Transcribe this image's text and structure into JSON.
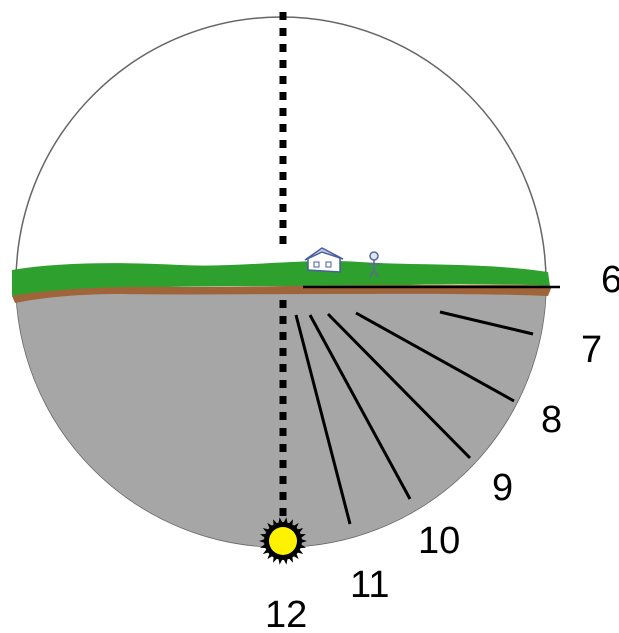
{
  "diagram": {
    "hour_labels": [
      "6",
      "7",
      "8",
      "9",
      "10",
      "11",
      "12"
    ],
    "colors": {
      "sky": "#ffffff",
      "earth": "#a6a6a6",
      "grass": "#2ea02e",
      "soil": "#a0643a",
      "sun": "#fff200",
      "outline": "#000000"
    },
    "icons": [
      "house-icon",
      "person-icon",
      "sun-icon"
    ]
  }
}
